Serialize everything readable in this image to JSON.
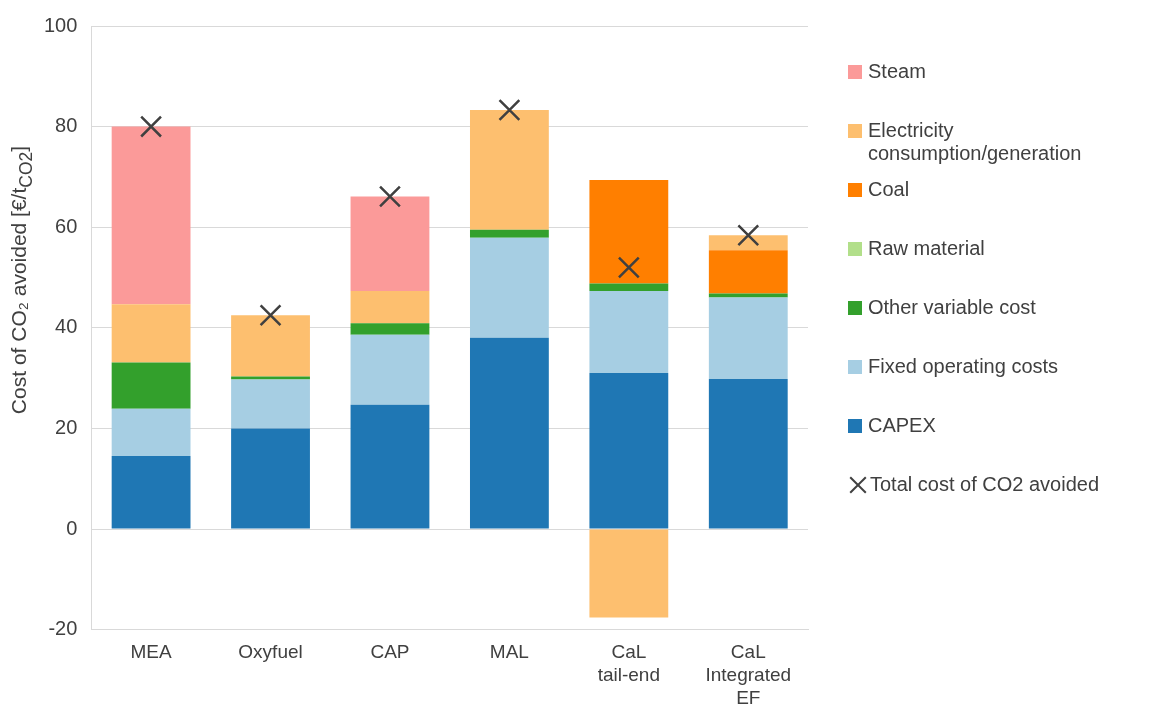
{
  "chart_data": {
    "type": "bar",
    "stacked": true,
    "ylabel": "Cost of CO₂ avoided [€/t$_{CO2}$]",
    "categories": [
      "MEA",
      "Oxyfuel",
      "CAP",
      "MAL",
      "CaL tail-end",
      "CaL Integrated EF"
    ],
    "ylim": [
      -20,
      100
    ],
    "yticks": [
      -20,
      0,
      20,
      40,
      60,
      80,
      100
    ],
    "grid": "y",
    "legend": "right",
    "series": [
      {
        "name": "CAPEX",
        "color": "#1f77b4",
        "values": [
          14.5,
          20.0,
          24.7,
          38.0,
          31.0,
          29.8
        ]
      },
      {
        "name": "Fixed operating costs",
        "color": "#a6cee3",
        "values": [
          9.4,
          9.7,
          13.9,
          19.9,
          16.3,
          16.2
        ]
      },
      {
        "name": "Other variable cost",
        "color": "#33a02c",
        "values": [
          9.2,
          0.6,
          2.3,
          1.6,
          1.5,
          0.8
        ]
      },
      {
        "name": "Raw material",
        "color": "#b2df8a",
        "values": [
          0,
          0,
          0,
          0,
          0,
          0
        ]
      },
      {
        "name": "Coal",
        "color": "#ff7f00",
        "values": [
          0,
          0,
          0,
          0,
          20.6,
          8.6
        ]
      },
      {
        "name": "Electricity consumption/generation",
        "color": "#fdbf6f",
        "values": [
          11.6,
          12.2,
          6.4,
          23.8,
          -17.6,
          3.0
        ]
      },
      {
        "name": "Steam",
        "color": "#fb9a99",
        "values": [
          35.3,
          0,
          18.8,
          0,
          0,
          0
        ]
      },
      {
        "name": "Total cost of CO2 avoided",
        "type": "scatter",
        "marker": "cross",
        "color": "#404040",
        "x": [
          "MEA",
          "Oxyfuel",
          "CAP",
          "MAL",
          "CaL tail-end",
          "CaL Integrated EF"
        ],
        "values": [
          80.0,
          42.5,
          66.1,
          83.3,
          52.0,
          58.4
        ]
      }
    ]
  }
}
